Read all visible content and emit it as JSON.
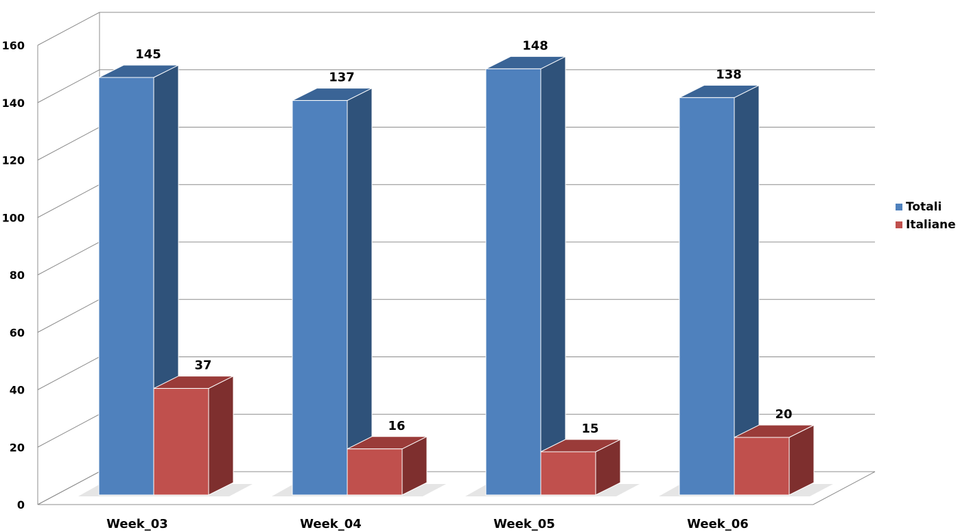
{
  "chart_data": {
    "type": "bar",
    "title": "",
    "xlabel": "",
    "ylabel": "",
    "categories": [
      "Week_03",
      "Week_04",
      "Week_05",
      "Week_06"
    ],
    "series": [
      {
        "name": "Totali",
        "values": [
          145,
          137,
          148,
          138
        ],
        "color": "#4F81BD",
        "side_color": "#2F527A",
        "top_color": "#3A6496"
      },
      {
        "name": "Italiane",
        "values": [
          37,
          16,
          15,
          20
        ],
        "color": "#C0504D",
        "side_color": "#7E2F2E",
        "top_color": "#9A3B39"
      }
    ],
    "ylim": [
      0,
      160
    ],
    "yticks": [
      0,
      20,
      40,
      60,
      80,
      100,
      120,
      140,
      160
    ],
    "grid": true,
    "legend_position": "right",
    "style": "3d-clustered-column"
  }
}
